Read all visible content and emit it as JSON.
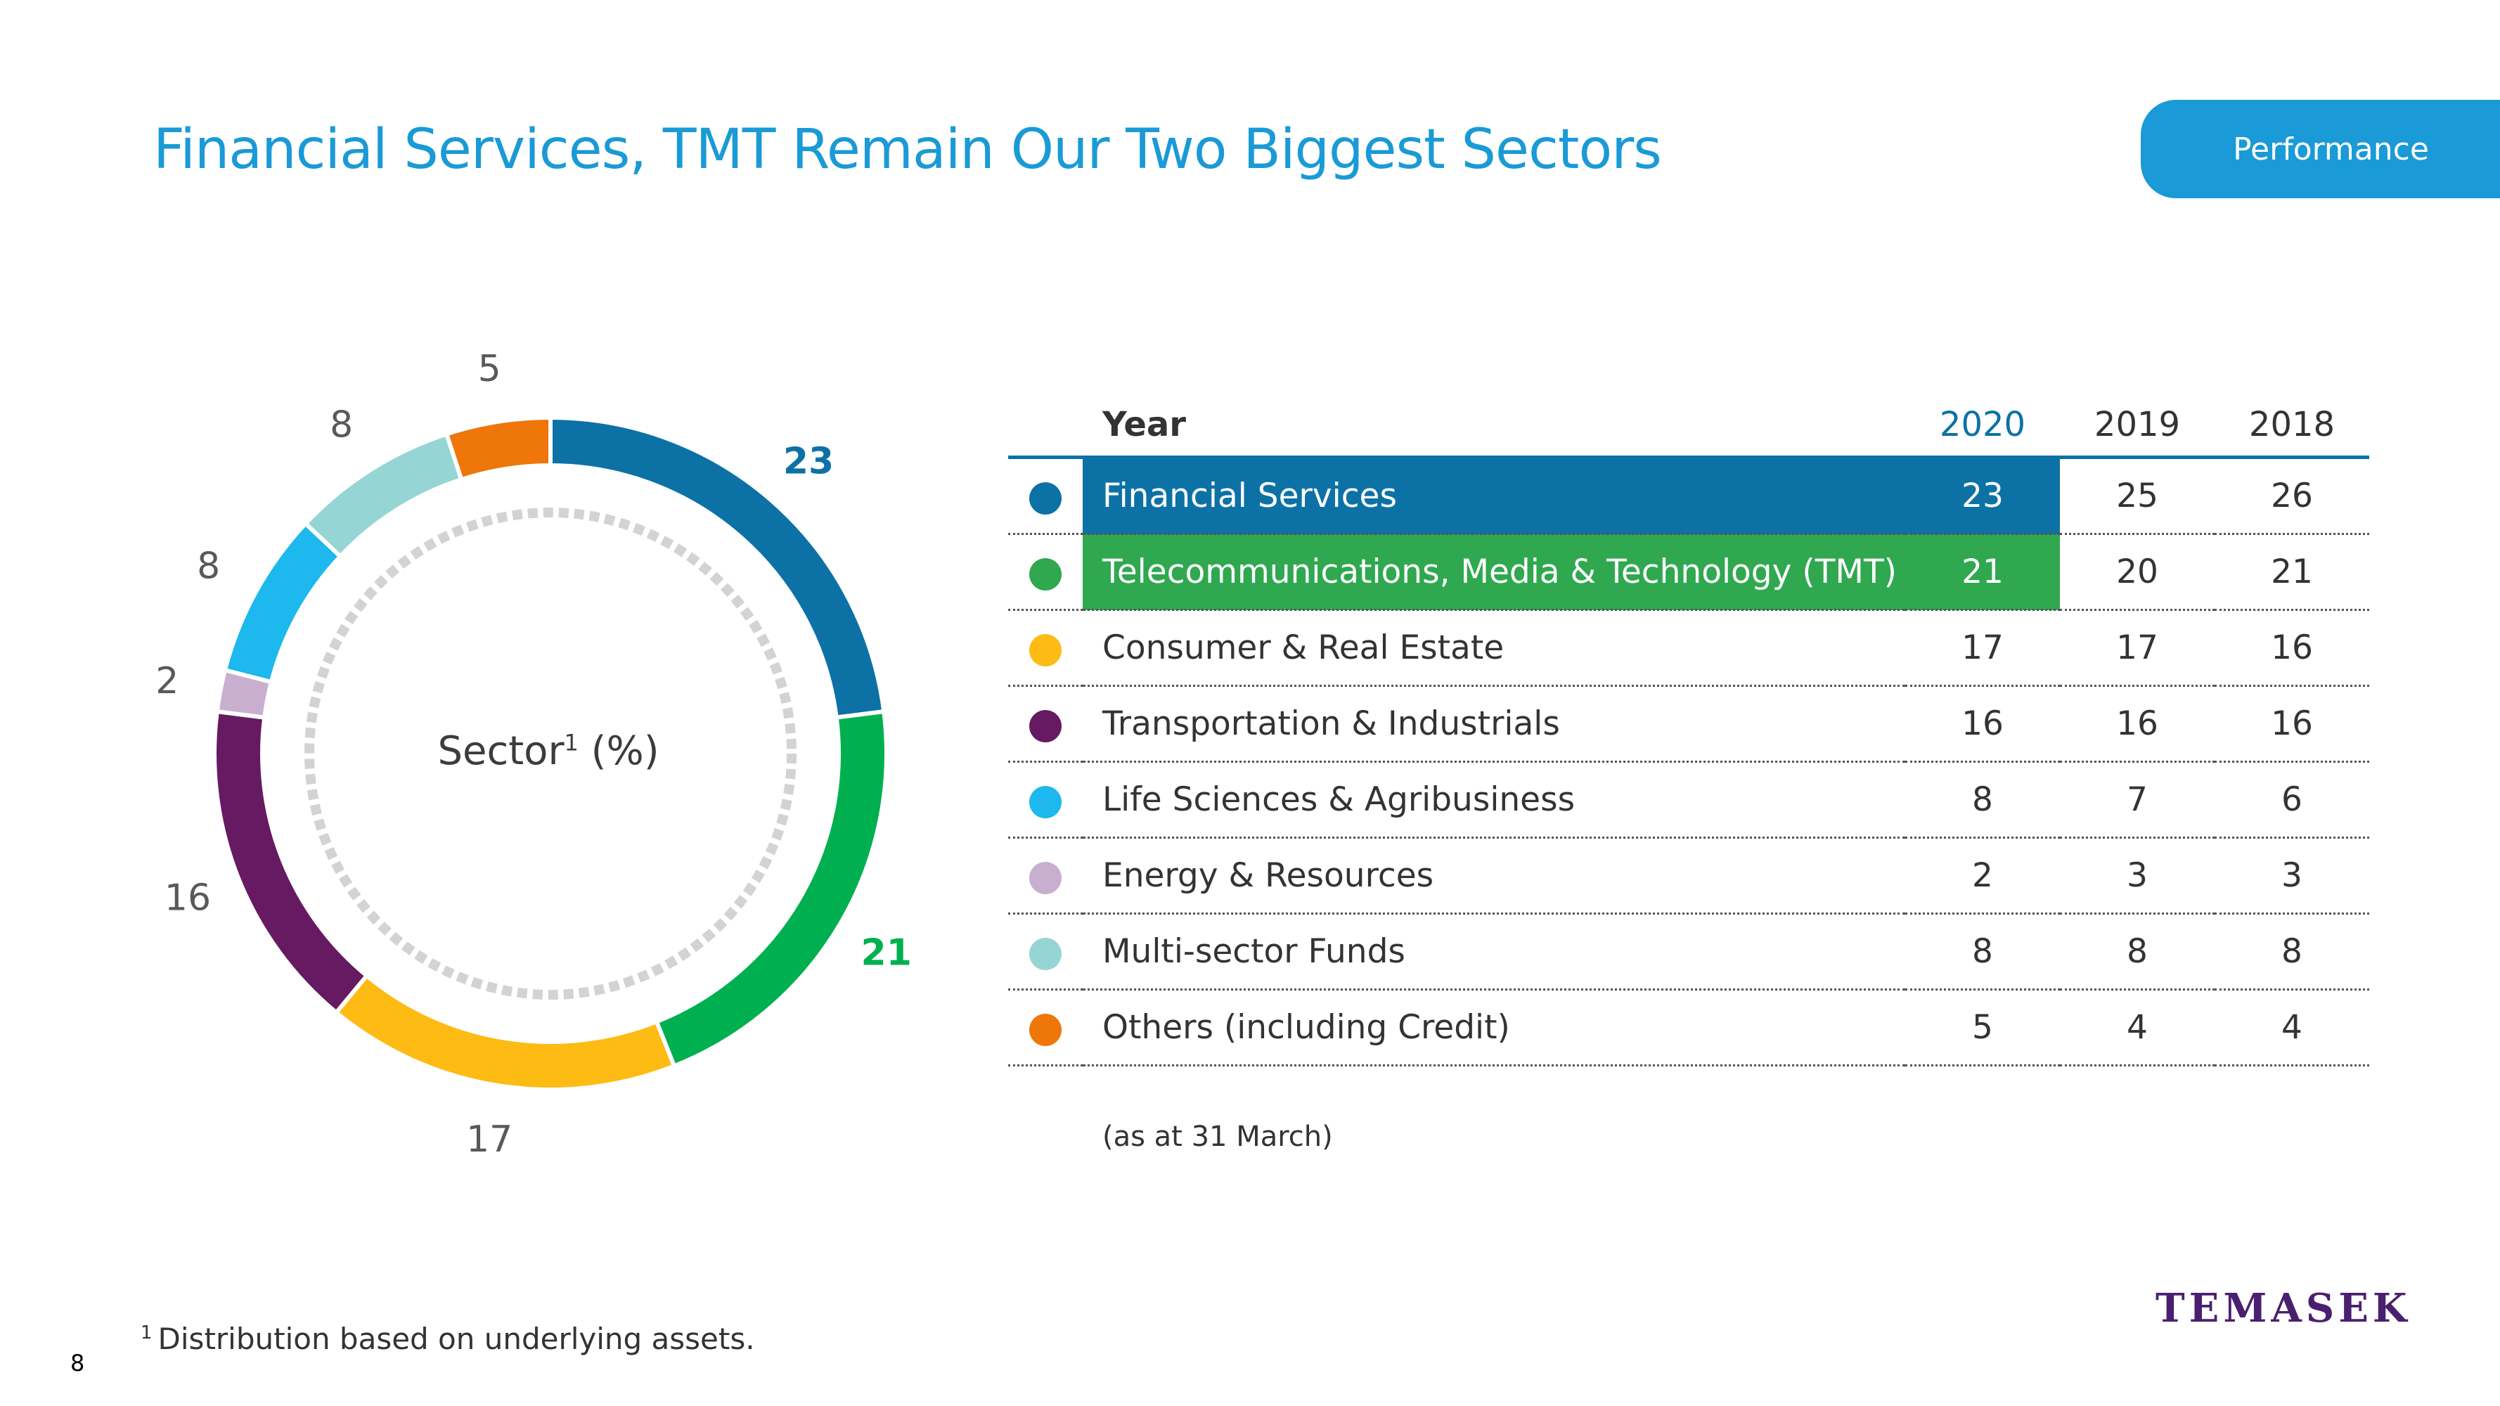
{
  "title": "Financial Services, TMT Remain Our Two Biggest Sectors",
  "tag": "Performance",
  "chart_center_label": "Sector",
  "chart_center_sup": "1",
  "chart_center_suffix": " (%)",
  "table": {
    "header_label": "Year",
    "years": [
      "2020",
      "2019",
      "2018"
    ],
    "rows": [
      {
        "label": "Financial Services",
        "color": "#0c72a6",
        "v2020": "23",
        "v2019": "25",
        "v2018": "26",
        "highlight": "#0c72a6"
      },
      {
        "label": "Telecommunications, Media & Technology (TMT)",
        "color": "#2fa84f",
        "v2020": "21",
        "v2019": "20",
        "v2018": "21",
        "highlight": "#2fa84f"
      },
      {
        "label": "Consumer & Real Estate",
        "color": "#fdbb13",
        "v2020": "17",
        "v2019": "17",
        "v2018": "16"
      },
      {
        "label": "Transportation & Industrials",
        "color": "#661a62",
        "v2020": "16",
        "v2019": "16",
        "v2018": "16"
      },
      {
        "label": "Life Sciences & Agribusiness",
        "color": "#1cb8ee",
        "v2020": "8",
        "v2019": "7",
        "v2018": "6"
      },
      {
        "label": "Energy & Resources",
        "color": "#c8afd0",
        "v2020": "2",
        "v2019": "3",
        "v2018": "3"
      },
      {
        "label": "Multi-sector Funds",
        "color": "#95d6d5",
        "v2020": "8",
        "v2019": "8",
        "v2018": "8"
      },
      {
        "label": "Others (including Credit)",
        "color": "#ef7609",
        "v2020": "5",
        "v2019": "4",
        "v2018": "4"
      }
    ]
  },
  "as_at": "(as at 31 March)",
  "footnote_mark": "1",
  "footnote": "Distribution based on underlying assets.",
  "page_number": "8",
  "logo": "TEMASEK",
  "chart_data": {
    "type": "pie",
    "donut": true,
    "categories": [
      "Financial Services",
      "Telecommunications, Media & Technology (TMT)",
      "Consumer & Real Estate",
      "Transportation & Industrials",
      "Energy & Resources",
      "Life Sciences & Agribusiness",
      "Multi-sector Funds",
      "Others (including Credit)"
    ],
    "values": [
      23,
      21,
      17,
      16,
      2,
      8,
      8,
      5
    ],
    "colors": [
      "#0c72a6",
      "#00b050",
      "#fdbb13",
      "#661a62",
      "#c8afd0",
      "#1cb8ee",
      "#95d6d5",
      "#ef7609"
    ],
    "data_labels": [
      "23",
      "21",
      "17",
      "16",
      "2",
      "8",
      "8",
      "5"
    ],
    "bold_labels": [
      true,
      true,
      false,
      false,
      false,
      false,
      false,
      false
    ]
  }
}
